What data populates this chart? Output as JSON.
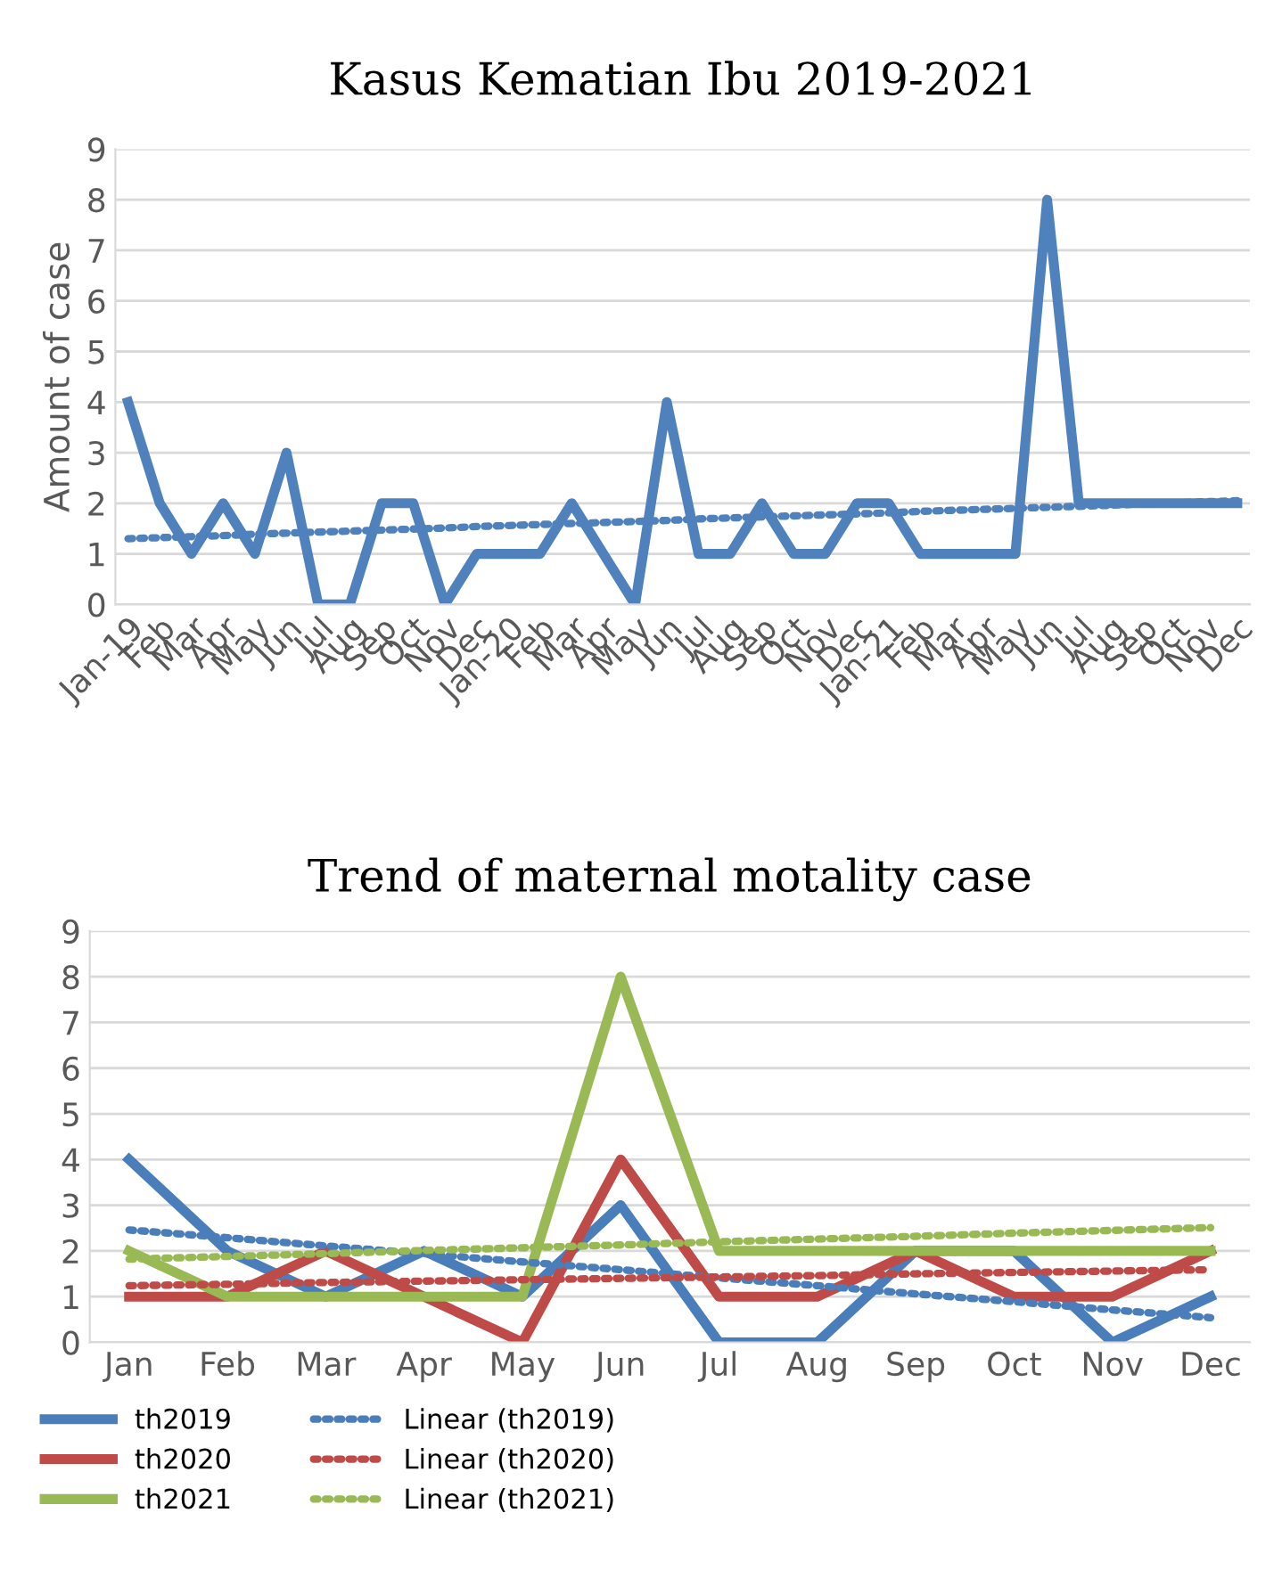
{
  "chart_data": [
    {
      "type": "line",
      "title": "Kasus Kematian Ibu 2019-2021",
      "ylabel": "Amount of case",
      "categories": [
        "Jan-19",
        "Feb",
        "Mar",
        "Apr",
        "May",
        "Jun",
        "Jul",
        "Aug",
        "Sep",
        "Oct",
        "Nov",
        "Dec",
        "Jan-20",
        "Feb",
        "Mar",
        "Apr",
        "May",
        "Jun",
        "Jul",
        "Aug",
        "Sep",
        "Oct",
        "Nov",
        "Dec",
        "Jan-21",
        "Feb",
        "Mar",
        "Apr",
        "May",
        "Jun",
        "Jul",
        "Aug",
        "Sep",
        "Oct",
        "Nov",
        "Dec"
      ],
      "series": [
        {
          "color": "#4f81bd",
          "line_style": "solid",
          "values": [
            4,
            2,
            1,
            2,
            1,
            3,
            0,
            0,
            2,
            2,
            0,
            1,
            1,
            1,
            2,
            1,
            0,
            4,
            1,
            1,
            2,
            1,
            1,
            2,
            2,
            1,
            1,
            1,
            1,
            8,
            2,
            2,
            2,
            2,
            2,
            2
          ]
        },
        {
          "color": "#4f81bd",
          "line_style": "dotted",
          "values": [
            1.3,
            1.32,
            1.34,
            1.36,
            1.39,
            1.41,
            1.43,
            1.45,
            1.47,
            1.49,
            1.51,
            1.54,
            1.56,
            1.58,
            1.6,
            1.62,
            1.64,
            1.66,
            1.69,
            1.71,
            1.73,
            1.75,
            1.77,
            1.79,
            1.81,
            1.84,
            1.86,
            1.88,
            1.9,
            1.92,
            1.94,
            1.96,
            1.99,
            2.01,
            2.03,
            2.05
          ]
        }
      ],
      "ylim": [
        0,
        9
      ],
      "yticks": [
        0,
        1,
        2,
        3,
        4,
        5,
        6,
        7,
        8,
        9
      ],
      "grid": "y",
      "legend": false
    },
    {
      "type": "line",
      "title": "Trend of maternal motality case",
      "categories": [
        "Jan",
        "Feb",
        "Mar",
        "Apr",
        "May",
        "Jun",
        "Jul",
        "Aug",
        "Sep",
        "Oct",
        "Nov",
        "Dec"
      ],
      "series": [
        {
          "name": "th2019",
          "color": "#4a7ebb",
          "line_style": "solid",
          "values": [
            4,
            2,
            1,
            2,
            1,
            3,
            0,
            0,
            2,
            2,
            0,
            1
          ]
        },
        {
          "name": "th2020",
          "color": "#be4b48",
          "line_style": "solid",
          "values": [
            1,
            1,
            2,
            1,
            0,
            4,
            1,
            1,
            2,
            1,
            1,
            2
          ]
        },
        {
          "name": "th2021",
          "color": "#98b954",
          "line_style": "solid",
          "values": [
            2,
            1,
            1,
            1,
            1,
            8,
            2,
            2,
            2,
            2,
            2,
            2
          ]
        },
        {
          "name": "Linear (th2019)",
          "color": "#4a7ebb",
          "line_style": "dotted",
          "values": [
            2.46,
            2.29,
            2.11,
            1.94,
            1.76,
            1.59,
            1.41,
            1.24,
            1.06,
            0.89,
            0.71,
            0.54
          ]
        },
        {
          "name": "Linear (th2020)",
          "color": "#be4b48",
          "line_style": "dotted",
          "values": [
            1.24,
            1.27,
            1.31,
            1.34,
            1.37,
            1.4,
            1.43,
            1.46,
            1.5,
            1.53,
            1.56,
            1.59
          ]
        },
        {
          "name": "Linear (th2021)",
          "color": "#98b954",
          "line_style": "dotted",
          "values": [
            1.82,
            1.88,
            1.94,
            2.01,
            2.07,
            2.13,
            2.2,
            2.26,
            2.32,
            2.39,
            2.45,
            2.51
          ]
        }
      ],
      "ylim": [
        0,
        9
      ],
      "yticks": [
        0,
        1,
        2,
        3,
        4,
        5,
        6,
        7,
        8,
        9
      ],
      "grid": "y",
      "legend": "bottom left"
    }
  ]
}
